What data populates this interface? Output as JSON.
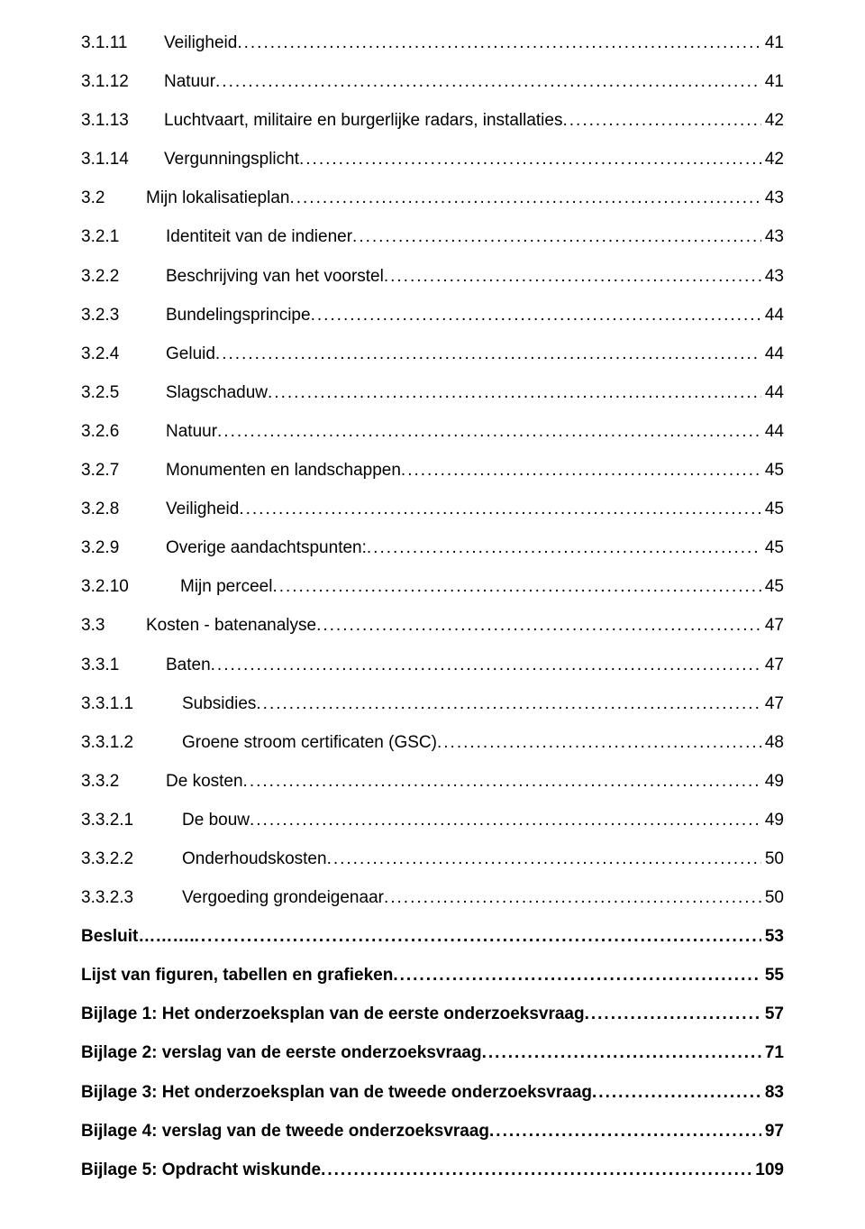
{
  "toc": [
    {
      "num": "3.1.11",
      "title": "Veiligheid",
      "page": "41",
      "bold": false,
      "indent": "indent-2"
    },
    {
      "num": "3.1.12",
      "title": "Natuur",
      "page": "41",
      "bold": false,
      "indent": "indent-2"
    },
    {
      "num": "3.1.13",
      "title": "Luchtvaart, militaire en burgerlijke radars, installaties",
      "page": "42",
      "bold": false,
      "indent": "indent-2"
    },
    {
      "num": "3.1.14",
      "title": "Vergunningsplicht",
      "page": "42",
      "bold": false,
      "indent": "indent-2"
    },
    {
      "num": "3.2",
      "title": "Mijn lokalisatieplan",
      "page": "43",
      "bold": false,
      "indent": "indent-1"
    },
    {
      "num": "3.2.1",
      "title": "Identiteit van de indiener",
      "page": "43",
      "bold": false,
      "indent": "indent-2b"
    },
    {
      "num": "3.2.2",
      "title": "Beschrijving van het voorstel",
      "page": "43",
      "bold": false,
      "indent": "indent-2b"
    },
    {
      "num": "3.2.3",
      "title": "Bundelingsprincipe",
      "page": "44",
      "bold": false,
      "indent": "indent-2b"
    },
    {
      "num": "3.2.4",
      "title": "Geluid",
      "page": "44",
      "bold": false,
      "indent": "indent-2b"
    },
    {
      "num": "3.2.5",
      "title": "Slagschaduw",
      "page": "44",
      "bold": false,
      "indent": "indent-2b"
    },
    {
      "num": "3.2.6",
      "title": "Natuur",
      "page": "44",
      "bold": false,
      "indent": "indent-2b"
    },
    {
      "num": "3.2.7",
      "title": "Monumenten en landschappen",
      "page": "45",
      "bold": false,
      "indent": "indent-2b"
    },
    {
      "num": "3.2.8",
      "title": "Veiligheid",
      "page": "45",
      "bold": false,
      "indent": "indent-2b"
    },
    {
      "num": "3.2.9",
      "title": "Overige aandachtspunten:",
      "page": "45",
      "bold": false,
      "indent": "indent-2b"
    },
    {
      "num": "3.2.10",
      "title": "Mijn perceel",
      "page": "45",
      "bold": false,
      "indent": "indent-1b"
    },
    {
      "num": "3.3",
      "title": "Kosten - batenanalyse",
      "page": "47",
      "bold": false,
      "indent": "indent-1"
    },
    {
      "num": "3.3.1",
      "title": "Baten",
      "page": "47",
      "bold": false,
      "indent": "indent-2b"
    },
    {
      "num": "3.3.1.1",
      "title": "Subsidies",
      "page": "47",
      "bold": false,
      "indent": "indent-3"
    },
    {
      "num": "3.3.1.2",
      "title": "Groene stroom certificaten (GSC)",
      "page": "48",
      "bold": false,
      "indent": "indent-3"
    },
    {
      "num": "3.3.2",
      "title": "De kosten",
      "page": "49",
      "bold": false,
      "indent": "indent-2b"
    },
    {
      "num": "3.3.2.1",
      "title": "De bouw",
      "page": "49",
      "bold": false,
      "indent": "indent-3"
    },
    {
      "num": "3.3.2.2",
      "title": "Onderhoudskosten",
      "page": "50",
      "bold": false,
      "indent": "indent-3"
    },
    {
      "num": "3.3.2.3",
      "title": "Vergoeding grondeigenaar",
      "page": "50",
      "bold": false,
      "indent": "indent-3"
    },
    {
      "num": "",
      "title": "Besluit……….",
      "page": "53",
      "bold": true,
      "indent": "indent-0"
    },
    {
      "num": "",
      "title": "Lijst van figuren, tabellen en grafieken",
      "page": "55",
      "bold": true,
      "indent": "indent-0"
    },
    {
      "num": "",
      "title": "Bijlage 1: Het onderzoeksplan van de eerste onderzoeksvraag",
      "page": "57",
      "bold": true,
      "indent": "indent-0"
    },
    {
      "num": "",
      "title": "Bijlage 2: verslag van de eerste onderzoeksvraag",
      "page": "71",
      "bold": true,
      "indent": "indent-0"
    },
    {
      "num": "",
      "title": "Bijlage 3: Het onderzoeksplan van de tweede onderzoeksvraag",
      "page": "83",
      "bold": true,
      "indent": "indent-0"
    },
    {
      "num": "",
      "title": "Bijlage 4: verslag van de tweede onderzoeksvraag",
      "page": "97",
      "bold": true,
      "indent": "indent-0"
    },
    {
      "num": "",
      "title": "Bijlage 5: Opdracht wiskunde",
      "page": "109",
      "bold": true,
      "indent": "indent-0"
    }
  ]
}
